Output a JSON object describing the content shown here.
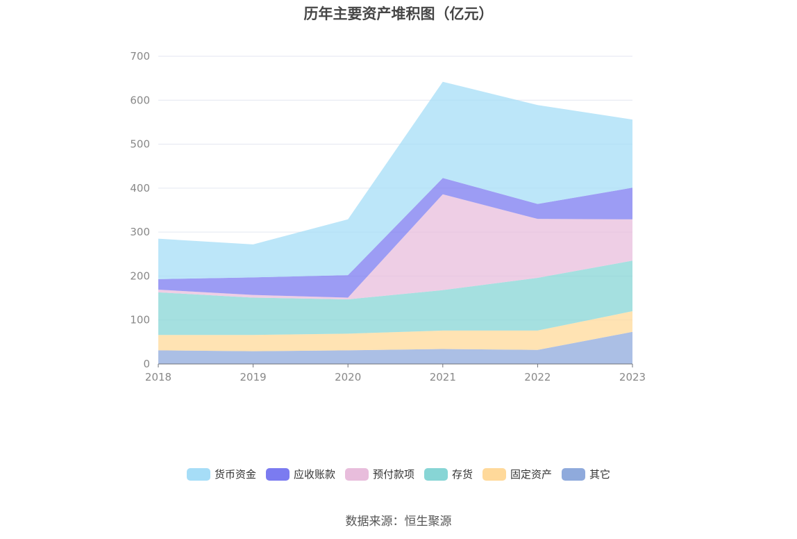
{
  "chart_data": {
    "type": "area",
    "stacked": true,
    "title": "历年主要资产堆积图（亿元）",
    "categories": [
      "2018",
      "2019",
      "2020",
      "2021",
      "2022",
      "2023"
    ],
    "ylim": [
      0,
      700
    ],
    "yticks": [
      0,
      100,
      200,
      300,
      400,
      500,
      600,
      700
    ],
    "grid": true,
    "legend_position": "bottom",
    "series": [
      {
        "name": "其它",
        "color": "#8faadc",
        "values": [
          31,
          29,
          31,
          34,
          32,
          73
        ]
      },
      {
        "name": "固定资产",
        "color": "#ffd99a",
        "values": [
          35,
          37,
          38,
          42,
          44,
          47
        ]
      },
      {
        "name": "存货",
        "color": "#87d5d5",
        "values": [
          97,
          85,
          78,
          92,
          120,
          115
        ]
      },
      {
        "name": "预付款项",
        "color": "#e8bddc",
        "values": [
          6,
          6,
          4,
          218,
          134,
          94
        ]
      },
      {
        "name": "应收账款",
        "color": "#7b7bf0",
        "values": [
          24,
          40,
          51,
          37,
          34,
          72
        ]
      },
      {
        "name": "货币资金",
        "color": "#a6ddf7",
        "values": [
          92,
          75,
          127,
          219,
          225,
          155
        ]
      }
    ]
  },
  "legend_order": [
    "货币资金",
    "应收账款",
    "预付款项",
    "存货",
    "固定资产",
    "其它"
  ],
  "source": "数据来源：恒生聚源"
}
